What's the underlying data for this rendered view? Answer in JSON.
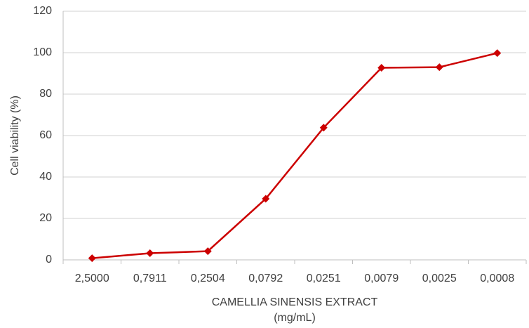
{
  "chart_data": {
    "type": "line",
    "x_label": [
      "CAMELLIA SINENSIS EXTRACT",
      "(mg/mL)"
    ],
    "y_label": "Cell viability (%)",
    "categories": [
      "2,5000",
      "0,7911",
      "0,2504",
      "0,0792",
      "0,0251",
      "0,0079",
      "0,0025",
      "0,0008"
    ],
    "series": [
      {
        "color": "#cc0000",
        "values": [
          0.8,
          3.2,
          4.2,
          29.5,
          63.8,
          92.7,
          93.0,
          99.8
        ]
      }
    ],
    "ylim": [
      0,
      120
    ],
    "yticks": [
      0,
      20,
      40,
      60,
      80,
      100,
      120
    ],
    "grid": true
  }
}
